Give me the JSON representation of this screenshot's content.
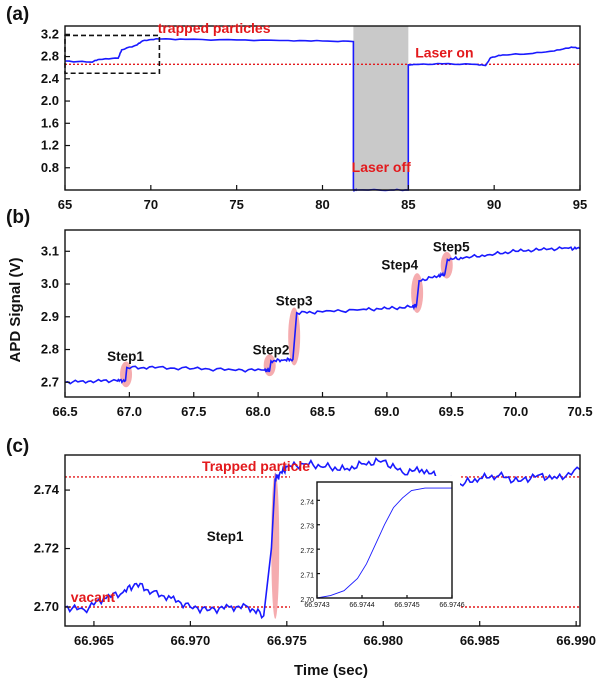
{
  "figure": {
    "ylabel": "APD Signal (V)",
    "xlabel": "Time (sec)"
  },
  "colors": {
    "signal": "#1a1aff",
    "reference": "#e3191c",
    "highlight": "#f4a3a6",
    "shade": "#c9c9c9"
  },
  "chart_data": [
    {
      "panel": "(a)",
      "type": "line",
      "xlim": [
        65,
        95
      ],
      "ylim": [
        0.4,
        3.35
      ],
      "x_ticks": [
        65,
        70,
        75,
        80,
        85,
        90,
        95
      ],
      "y_ticks": [
        0.8,
        1.2,
        1.6,
        2.0,
        2.4,
        2.8,
        3.2
      ],
      "series": [
        {
          "x": [
            65,
            66.5,
            67.0,
            68.1,
            68.3,
            69.2,
            69.5,
            70.3,
            72,
            75,
            78,
            80,
            81.8,
            81.8,
            81.9,
            82,
            84,
            85.0,
            85.0,
            85.3,
            87,
            89.0,
            89.5,
            89.8,
            90.5,
            92,
            93.5,
            94.5,
            95
          ],
          "y": [
            2.72,
            2.7,
            2.75,
            2.77,
            2.92,
            3.01,
            3.08,
            3.12,
            3.11,
            3.1,
            3.09,
            3.08,
            3.07,
            0.4,
            0.4,
            0.4,
            0.4,
            0.4,
            2.65,
            2.66,
            2.67,
            2.66,
            2.64,
            2.78,
            2.83,
            2.85,
            2.9,
            2.97,
            2.95
          ]
        }
      ],
      "reference_line": {
        "y": 2.66
      },
      "shaded_x": [
        81.8,
        85.0
      ],
      "zoom_box": {
        "x": [
          65.0,
          70.5
        ],
        "y": [
          2.5,
          3.18
        ]
      },
      "annotations": [
        {
          "text": "trapped particles",
          "x": 70.4,
          "y": 3.22
        },
        {
          "text": "Laser on",
          "x": 85.4,
          "y": 2.78
        },
        {
          "text": "Laser off",
          "x": 81.7,
          "y": 0.72
        }
      ]
    },
    {
      "panel": "(b)",
      "type": "line",
      "xlim": [
        66.5,
        70.5
      ],
      "ylim": [
        2.655,
        3.165
      ],
      "x_ticks": [
        66.5,
        67.0,
        67.5,
        68.0,
        68.5,
        69.0,
        69.5,
        70.0,
        70.5
      ],
      "y_ticks": [
        2.7,
        2.8,
        2.9,
        3.0,
        3.1
      ],
      "series": [
        {
          "x": [
            66.5,
            66.7,
            66.9,
            66.97,
            66.98,
            67.2,
            67.5,
            67.8,
            68.05,
            68.09,
            68.1,
            68.2,
            68.27,
            68.3,
            68.5,
            68.8,
            69.0,
            69.2,
            69.23,
            69.25,
            69.4,
            69.45,
            69.47,
            69.6,
            69.8,
            70.0,
            70.2,
            70.4,
            70.5
          ],
          "y": [
            2.7,
            2.704,
            2.705,
            2.705,
            2.745,
            2.744,
            2.742,
            2.738,
            2.737,
            2.737,
            2.765,
            2.768,
            2.77,
            2.912,
            2.915,
            2.922,
            2.925,
            2.93,
            2.935,
            3.01,
            3.025,
            3.03,
            3.075,
            3.08,
            3.09,
            3.1,
            3.105,
            3.11,
            3.108
          ]
        }
      ],
      "steps": [
        {
          "label": "Step1",
          "x": 66.974,
          "y0": 2.703,
          "y1": 2.745,
          "label_x": 66.97,
          "label_y": 2.765
        },
        {
          "label": "Step2",
          "x": 68.09,
          "y0": 2.737,
          "y1": 2.767,
          "label_x": 68.1,
          "label_y": 2.785
        },
        {
          "label": "Step3",
          "x": 68.28,
          "y0": 2.77,
          "y1": 2.91,
          "label_x": 68.28,
          "label_y": 2.935
        },
        {
          "label": "Step4",
          "x": 69.235,
          "y0": 2.93,
          "y1": 3.015,
          "label_x": 69.1,
          "label_y": 3.045
        },
        {
          "label": "Step5",
          "x": 69.465,
          "y0": 3.035,
          "y1": 3.08,
          "label_x": 69.5,
          "label_y": 3.1
        }
      ]
    },
    {
      "panel": "(c)",
      "type": "line",
      "xlim": [
        66.9635,
        66.9902
      ],
      "ylim": [
        2.6935,
        2.752
      ],
      "x_ticks": [
        66.965,
        66.97,
        66.975,
        66.98,
        66.985,
        66.99
      ],
      "y_ticks": [
        2.7,
        2.72,
        2.74
      ],
      "series": [
        {
          "x": [
            66.9635,
            66.9645,
            66.9655,
            66.9665,
            66.9672,
            66.968,
            66.969,
            66.97,
            66.971,
            66.972,
            66.973,
            66.9738,
            66.9742,
            66.9744,
            66.9746,
            66.975,
            66.976,
            66.977,
            66.978,
            66.979,
            66.98,
            66.981,
            66.982,
            66.983,
            66.984,
            66.985,
            66.986,
            66.987,
            66.988,
            66.989,
            66.9902
          ],
          "y": [
            2.7,
            2.699,
            2.703,
            2.705,
            2.708,
            2.705,
            2.703,
            2.7,
            2.699,
            2.7,
            2.7,
            2.697,
            2.72,
            2.744,
            2.745,
            2.748,
            2.749,
            2.748,
            2.747,
            2.749,
            2.75,
            2.746,
            2.747,
            2.744,
            2.742,
            2.744,
            2.745,
            2.743,
            2.745,
            2.744,
            2.747
          ]
        }
      ],
      "reference_lines": [
        {
          "label": "vacant",
          "y": 2.7
        },
        {
          "label": "Trapped particle",
          "y": 2.7445
        }
      ],
      "steps": [
        {
          "label": "Step1",
          "x": 66.9744,
          "y0": 2.698,
          "y1": 2.744,
          "label_x": 66.9718,
          "label_y": 2.7225
        }
      ]
    },
    {
      "panel": "inset",
      "type": "line",
      "xlim": [
        66.9743,
        66.9746
      ],
      "ylim": [
        2.7,
        2.7475
      ],
      "x_ticks": [
        66.9743,
        66.9744,
        66.9745,
        66.9746
      ],
      "x_tick_labels": [
        "66.9743",
        "66.9744",
        "66.9745",
        "66.9746"
      ],
      "y_ticks": [
        2.7,
        2.71,
        2.72,
        2.73,
        2.74
      ],
      "y_tick_labels": [
        "2.70",
        "2.71",
        "2.72",
        "2.73",
        "2.74"
      ],
      "series": [
        {
          "x": [
            66.9743,
            66.97433,
            66.97436,
            66.97439,
            66.97441,
            66.97443,
            66.97445,
            66.97447,
            66.97449,
            66.97451,
            66.97454,
            66.97457,
            66.9746
          ],
          "y": [
            2.7,
            2.701,
            2.703,
            2.708,
            2.714,
            2.722,
            2.73,
            2.737,
            2.741,
            2.744,
            2.745,
            2.745,
            2.745
          ]
        }
      ]
    }
  ]
}
